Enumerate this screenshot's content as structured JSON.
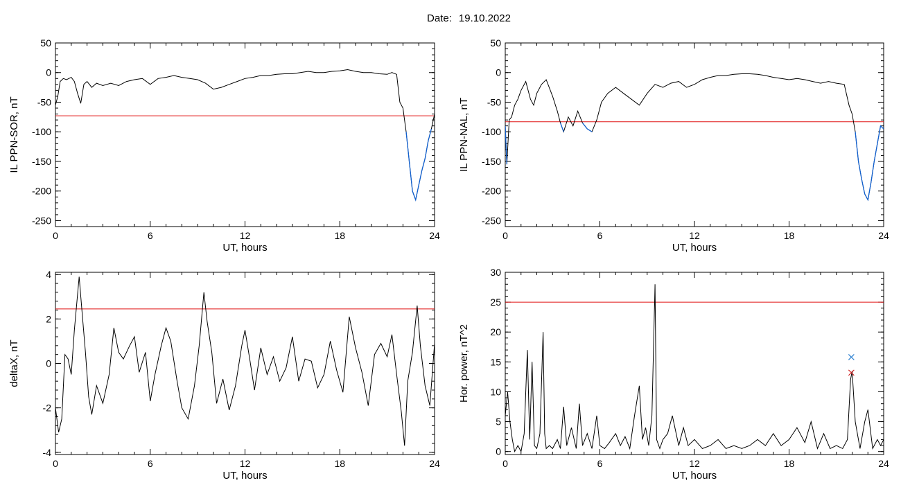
{
  "header": {
    "date_label": "Date:",
    "date_value": "19.10.2022"
  },
  "colors": {
    "threshold": "#e01010",
    "highlight": "#1060d0",
    "trace": "#000000",
    "marker_blue": "#2a7fd0",
    "marker_red": "#d02020"
  },
  "chart_data": [
    {
      "type": "line",
      "ylabel": "IL PPN-SOR, nT",
      "xlabel": "UT, hours",
      "xlim": [
        0,
        24
      ],
      "ylim": [
        -260,
        50
      ],
      "xticks": [
        0,
        6,
        12,
        18,
        24
      ],
      "yticks": [
        50,
        0,
        -50,
        -100,
        -150,
        -200,
        -250
      ],
      "threshold": -73,
      "highlight_below": -73,
      "series": [
        {
          "x": [
            0,
            0.15,
            0.3,
            0.5,
            0.7,
            1.0,
            1.2,
            1.4,
            1.6,
            1.8,
            2.0,
            2.3,
            2.6,
            3.0,
            3.5,
            4.0,
            4.5,
            5.0,
            5.5,
            6.0,
            6.5,
            7.0,
            7.5,
            8.0,
            8.5,
            9.0,
            9.5,
            10.0,
            10.5,
            11.0,
            11.5,
            12.0,
            12.5,
            13.0,
            13.5,
            14.0,
            14.5,
            15.0,
            15.5,
            16.0,
            16.5,
            17.0,
            17.5,
            18.0,
            18.5,
            19.0,
            19.5,
            20.0,
            20.5,
            21.0,
            21.3,
            21.6,
            21.8,
            22.0,
            22.2,
            22.4,
            22.5,
            22.6,
            22.8,
            23.0,
            23.2,
            23.4,
            23.6,
            23.8,
            24.0
          ],
          "y": [
            -55,
            -40,
            -15,
            -10,
            -12,
            -8,
            -15,
            -35,
            -52,
            -20,
            -15,
            -25,
            -18,
            -22,
            -18,
            -22,
            -15,
            -12,
            -10,
            -20,
            -10,
            -8,
            -5,
            -8,
            -10,
            -12,
            -18,
            -28,
            -25,
            -20,
            -15,
            -10,
            -8,
            -5,
            -5,
            -3,
            -2,
            -2,
            0,
            2,
            0,
            0,
            2,
            3,
            5,
            2,
            0,
            0,
            -2,
            -3,
            0,
            -3,
            -50,
            -60,
            -100,
            -150,
            -175,
            -200,
            -215,
            -190,
            -165,
            -145,
            -115,
            -95,
            -70
          ]
        }
      ]
    },
    {
      "type": "line",
      "ylabel": "IL PPN-NAL, nT",
      "xlabel": "UT, hours",
      "xlim": [
        0,
        24
      ],
      "ylim": [
        -260,
        50
      ],
      "xticks": [
        0,
        6,
        12,
        18,
        24
      ],
      "yticks": [
        50,
        0,
        -50,
        -100,
        -150,
        -200,
        -250
      ],
      "threshold": -83,
      "highlight_below": -83,
      "series": [
        {
          "x": [
            0,
            0.1,
            0.25,
            0.4,
            0.6,
            0.8,
            1.0,
            1.3,
            1.6,
            1.8,
            2.0,
            2.3,
            2.6,
            3.0,
            3.3,
            3.5,
            3.7,
            4.0,
            4.3,
            4.6,
            4.9,
            5.2,
            5.5,
            5.8,
            6.1,
            6.5,
            7.0,
            7.5,
            8.0,
            8.5,
            9.0,
            9.5,
            10.0,
            10.5,
            11.0,
            11.5,
            12.0,
            12.5,
            13.0,
            13.5,
            14.0,
            14.5,
            15.0,
            15.5,
            16.0,
            16.5,
            17.0,
            17.5,
            18.0,
            18.5,
            19.0,
            19.5,
            20.0,
            20.5,
            21.0,
            21.5,
            21.8,
            22.0,
            22.2,
            22.4,
            22.6,
            22.8,
            23.0,
            23.2,
            23.4,
            23.6,
            23.8,
            24.0
          ],
          "y": [
            -90,
            -155,
            -80,
            -75,
            -55,
            -45,
            -30,
            -15,
            -45,
            -55,
            -35,
            -20,
            -12,
            -40,
            -65,
            -85,
            -100,
            -75,
            -90,
            -65,
            -85,
            -95,
            -100,
            -80,
            -50,
            -35,
            -25,
            -35,
            -45,
            -55,
            -35,
            -20,
            -25,
            -18,
            -15,
            -25,
            -20,
            -12,
            -8,
            -5,
            -5,
            -3,
            -2,
            -2,
            -3,
            -5,
            -8,
            -10,
            -12,
            -10,
            -12,
            -15,
            -18,
            -15,
            -18,
            -20,
            -55,
            -70,
            -100,
            -150,
            -180,
            -205,
            -215,
            -185,
            -150,
            -120,
            -90,
            -95
          ]
        }
      ]
    },
    {
      "type": "line",
      "ylabel": "deltaX, nT",
      "xlabel": "UT, hours",
      "xlim": [
        0,
        24
      ],
      "ylim": [
        -4.1,
        4.1
      ],
      "xticks": [
        0,
        6,
        12,
        18,
        24
      ],
      "yticks": [
        4,
        2,
        0,
        -2,
        -4
      ],
      "threshold": 2.45,
      "series": [
        {
          "x": [
            0,
            0.2,
            0.4,
            0.6,
            0.8,
            1.0,
            1.2,
            1.5,
            1.7,
            1.9,
            2.1,
            2.3,
            2.6,
            3.0,
            3.4,
            3.7,
            4.0,
            4.3,
            4.7,
            5.0,
            5.3,
            5.7,
            6.0,
            6.3,
            6.7,
            7.0,
            7.3,
            7.7,
            8.0,
            8.4,
            8.8,
            9.1,
            9.4,
            9.6,
            9.9,
            10.2,
            10.6,
            11.0,
            11.4,
            11.8,
            12.0,
            12.3,
            12.6,
            13.0,
            13.4,
            13.8,
            14.2,
            14.6,
            15.0,
            15.4,
            15.8,
            16.2,
            16.6,
            17.0,
            17.4,
            17.8,
            18.2,
            18.6,
            19.0,
            19.4,
            19.8,
            20.2,
            20.6,
            21.0,
            21.3,
            21.6,
            21.9,
            22.1,
            22.3,
            22.6,
            22.9,
            23.1,
            23.4,
            23.7,
            24.0
          ],
          "y": [
            -2.0,
            -3.1,
            -2.5,
            0.4,
            0.2,
            -0.5,
            1.5,
            3.9,
            2.2,
            0.5,
            -1.5,
            -2.3,
            -1.0,
            -1.8,
            -0.5,
            1.6,
            0.5,
            0.2,
            0.8,
            1.2,
            -0.4,
            0.5,
            -1.7,
            -0.5,
            0.8,
            1.6,
            1.0,
            -0.8,
            -2.0,
            -2.5,
            -1.0,
            0.8,
            3.2,
            1.9,
            0.5,
            -1.8,
            -0.7,
            -2.1,
            -1.0,
            0.8,
            1.5,
            0.2,
            -1.2,
            0.7,
            -0.5,
            0.3,
            -0.8,
            -0.2,
            1.2,
            -0.8,
            0.2,
            0.1,
            -1.1,
            -0.5,
            1.0,
            -0.3,
            -1.3,
            2.1,
            0.7,
            -0.4,
            -1.9,
            0.4,
            0.9,
            0.3,
            1.3,
            -0.5,
            -2.2,
            -3.7,
            -0.8,
            0.5,
            2.6,
            0.8,
            -1.0,
            -1.9,
            0.9
          ]
        }
      ]
    },
    {
      "type": "line",
      "ylabel": "Hor. power, nT^2",
      "xlabel": "UT, hours",
      "xlim": [
        0,
        24
      ],
      "ylim": [
        -0.5,
        30
      ],
      "xticks": [
        0,
        6,
        12,
        18,
        24
      ],
      "yticks": [
        30,
        25,
        20,
        15,
        10,
        5,
        0
      ],
      "threshold": 25,
      "markers": [
        {
          "x": 21.95,
          "y": 15.8,
          "color": "#2a7fd0"
        },
        {
          "x": 21.95,
          "y": 13.2,
          "color": "#d02020"
        }
      ],
      "series": [
        {
          "x": [
            0,
            0.15,
            0.3,
            0.45,
            0.6,
            0.8,
            1.0,
            1.2,
            1.4,
            1.55,
            1.7,
            1.85,
            2.0,
            2.2,
            2.4,
            2.5,
            2.6,
            2.8,
            3.0,
            3.3,
            3.5,
            3.7,
            3.9,
            4.2,
            4.5,
            4.7,
            4.9,
            5.2,
            5.5,
            5.8,
            6.0,
            6.3,
            6.6,
            7.0,
            7.3,
            7.6,
            7.9,
            8.2,
            8.5,
            8.7,
            8.9,
            9.1,
            9.3,
            9.5,
            9.6,
            9.8,
            10.0,
            10.3,
            10.6,
            11.0,
            11.3,
            11.6,
            12.0,
            12.5,
            13.0,
            13.5,
            14.0,
            14.5,
            15.0,
            15.5,
            16.0,
            16.5,
            17.0,
            17.5,
            18.0,
            18.5,
            19.0,
            19.4,
            19.8,
            20.2,
            20.6,
            21.0,
            21.4,
            21.7,
            21.9,
            22.0,
            22.2,
            22.5,
            22.8,
            23.0,
            23.3,
            23.6,
            23.8,
            24.0
          ],
          "y": [
            6,
            10,
            5,
            2,
            0,
            1,
            0,
            3,
            17,
            2,
            15,
            1,
            0.5,
            3,
            20,
            3,
            0.5,
            1,
            0.5,
            2,
            0.5,
            7.5,
            1,
            4,
            0.5,
            8,
            1,
            3,
            0.5,
            6,
            1,
            0.5,
            1.5,
            3,
            1,
            2.5,
            0.5,
            6,
            11,
            2,
            4,
            1,
            6,
            28,
            2,
            0.5,
            2,
            3,
            6,
            1,
            4,
            1,
            2,
            0.5,
            1,
            2,
            0.5,
            1,
            0.5,
            1,
            2,
            1,
            3,
            1,
            2,
            4,
            1.5,
            5,
            0.5,
            3,
            0.5,
            1,
            0.5,
            2,
            12,
            13.5,
            5,
            0.5,
            5,
            7,
            0.5,
            2,
            1,
            2
          ]
        }
      ]
    }
  ]
}
